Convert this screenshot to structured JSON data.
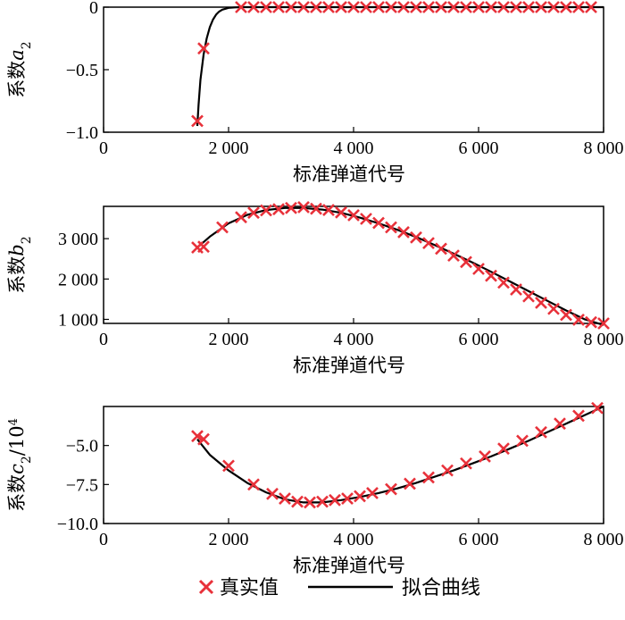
{
  "legend": {
    "marker_label": "真实值",
    "line_label": "拟合曲线"
  },
  "colors": {
    "marker": "#e8313a",
    "line": "#000000",
    "axes": "#000000"
  },
  "chart_data": [
    {
      "type": "line",
      "ylabel_text": "系数",
      "ylabel_var": "a",
      "ylabel_sub": "2",
      "ylabel_suffix": "",
      "ylabel_sup": "",
      "xlabel": "标准弹道代号",
      "xlim": [
        0,
        8000
      ],
      "ylim": [
        -1.0,
        0.0
      ],
      "xticks": [
        0,
        2000,
        4000,
        6000,
        8000
      ],
      "xtick_labels": [
        "0",
        "2 000",
        "4 000",
        "6 000",
        "8 000"
      ],
      "yticks": [
        -1.0,
        -0.5,
        0
      ],
      "ytick_labels": [
        "−1.0",
        "−0.5",
        "0"
      ],
      "true_values": {
        "x": [
          1500,
          1600,
          2200,
          2400,
          2600,
          2800,
          3000,
          3200,
          3400,
          3600,
          3800,
          4000,
          4200,
          4400,
          4600,
          4800,
          5000,
          5200,
          5400,
          5600,
          5800,
          6000,
          6200,
          6400,
          6600,
          6800,
          7000,
          7200,
          7400,
          7600,
          7800
        ],
        "y": [
          -0.91,
          -0.33,
          0,
          0,
          0,
          0,
          0,
          0,
          0,
          0,
          0,
          0,
          0,
          0,
          0,
          0,
          0,
          0,
          0,
          0,
          0,
          0,
          0,
          0,
          0,
          0,
          0,
          0,
          0,
          0,
          0
        ]
      },
      "fit": {
        "x": [
          1500,
          1520,
          1550,
          1600,
          1650,
          1700,
          1750,
          1800,
          1850,
          1900,
          2000,
          2100,
          2200,
          2400,
          3000,
          4000,
          5000,
          6000,
          7000,
          8000
        ],
        "y": [
          -0.95,
          -0.78,
          -0.58,
          -0.38,
          -0.25,
          -0.16,
          -0.1,
          -0.06,
          -0.035,
          -0.02,
          -0.006,
          -0.002,
          0,
          0,
          0,
          0,
          0,
          0,
          0,
          0
        ]
      }
    },
    {
      "type": "line",
      "ylabel_text": "系数",
      "ylabel_var": "b",
      "ylabel_sub": "2",
      "ylabel_suffix": "",
      "ylabel_sup": "",
      "xlabel": "标准弹道代号",
      "xlim": [
        0,
        8000
      ],
      "ylim": [
        900,
        3800
      ],
      "xticks": [
        0,
        2000,
        4000,
        6000,
        8000
      ],
      "xtick_labels": [
        "0",
        "2 000",
        "4 000",
        "6 000",
        "8 000"
      ],
      "yticks": [
        1000,
        2000,
        3000
      ],
      "ytick_labels": [
        "1 000",
        "2 000",
        "3 000"
      ],
      "true_values": {
        "x": [
          1500,
          1600,
          1900,
          2200,
          2400,
          2600,
          2800,
          3000,
          3200,
          3400,
          3600,
          3800,
          4000,
          4200,
          4400,
          4600,
          4800,
          5000,
          5200,
          5400,
          5600,
          5800,
          6000,
          6200,
          6400,
          6600,
          6800,
          7000,
          7200,
          7400,
          7600,
          7800,
          8000
        ],
        "y": [
          2780,
          2800,
          3280,
          3530,
          3640,
          3700,
          3730,
          3760,
          3780,
          3740,
          3710,
          3650,
          3580,
          3490,
          3390,
          3280,
          3160,
          3030,
          2890,
          2750,
          2580,
          2420,
          2250,
          2080,
          1910,
          1740,
          1570,
          1410,
          1260,
          1110,
          990,
          930,
          900
        ]
      },
      "fit": {
        "x": [
          1500,
          1700,
          2000,
          2300,
          2600,
          2900,
          3200,
          3500,
          3800,
          4100,
          4400,
          4700,
          5000,
          5300,
          5600,
          5900,
          6200,
          6500,
          6800,
          7100,
          7400,
          7700,
          8000
        ],
        "y": [
          2780,
          3050,
          3380,
          3590,
          3710,
          3760,
          3760,
          3720,
          3640,
          3520,
          3380,
          3220,
          3040,
          2840,
          2630,
          2410,
          2180,
          1940,
          1700,
          1460,
          1220,
          1000,
          860
        ]
      }
    },
    {
      "type": "line",
      "ylabel_text": "系数",
      "ylabel_var": "c",
      "ylabel_sub": "2",
      "ylabel_suffix": "/10",
      "ylabel_sup": "4",
      "xlabel": "标准弹道代号",
      "xlim": [
        0,
        8000
      ],
      "ylim": [
        -10.0,
        -2.5
      ],
      "xticks": [
        0,
        2000,
        4000,
        6000,
        8000
      ],
      "xtick_labels": [
        "0",
        "2 000",
        "4 000",
        "6 000",
        "8 000"
      ],
      "yticks": [
        -10.0,
        -7.5,
        -5.0
      ],
      "ytick_labels": [
        "−10.0",
        "−7.5",
        "−5.0"
      ],
      "true_values": {
        "x": [
          1500,
          1600,
          2000,
          2400,
          2700,
          2900,
          3100,
          3300,
          3500,
          3700,
          3900,
          4100,
          4300,
          4600,
          4900,
          5200,
          5500,
          5800,
          6100,
          6400,
          6700,
          7000,
          7300,
          7600,
          7900
        ],
        "y": [
          -4.4,
          -4.6,
          -6.3,
          -7.5,
          -8.1,
          -8.4,
          -8.6,
          -8.65,
          -8.6,
          -8.5,
          -8.4,
          -8.25,
          -8.05,
          -7.8,
          -7.45,
          -7.05,
          -6.6,
          -6.15,
          -5.7,
          -5.2,
          -4.7,
          -4.15,
          -3.6,
          -3.1,
          -2.6
        ]
      },
      "fit": {
        "x": [
          1500,
          1700,
          2000,
          2300,
          2600,
          2900,
          3200,
          3500,
          3800,
          4100,
          4400,
          4700,
          5000,
          5300,
          5600,
          5900,
          6200,
          6500,
          6800,
          7100,
          7400,
          7700,
          8000
        ],
        "y": [
          -4.6,
          -5.6,
          -6.6,
          -7.4,
          -8.0,
          -8.45,
          -8.65,
          -8.65,
          -8.5,
          -8.3,
          -8.05,
          -7.75,
          -7.4,
          -7.0,
          -6.6,
          -6.15,
          -5.7,
          -5.2,
          -4.7,
          -4.15,
          -3.6,
          -3.05,
          -2.5
        ]
      }
    }
  ]
}
